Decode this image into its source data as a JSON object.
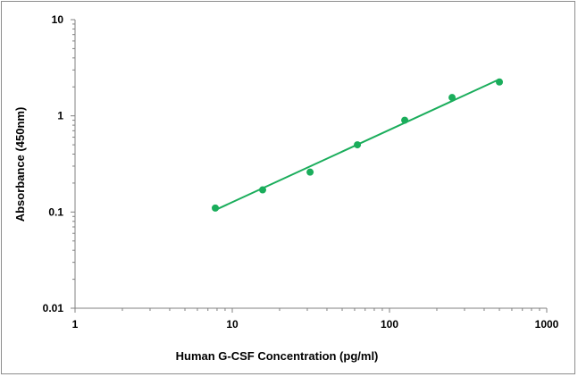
{
  "chart_data": {
    "type": "scatter",
    "title": "",
    "xlabel": "Human G-CSF Concentration (pg/ml)",
    "ylabel": "Absorbance (450nm)",
    "x_scale": "log",
    "y_scale": "log",
    "xlim": [
      1,
      1000
    ],
    "ylim": [
      0.01,
      10
    ],
    "x_ticks": [
      1,
      10,
      100,
      1000
    ],
    "x_tick_labels": [
      "1",
      "10",
      "100",
      "1000"
    ],
    "y_ticks": [
      0.01,
      0.1,
      1,
      10
    ],
    "y_tick_labels": [
      "0.01",
      "0.1",
      "1",
      "10"
    ],
    "grid": false,
    "legend": "none",
    "series": [
      {
        "x": [
          7.8,
          15.6,
          31.25,
          62.5,
          125,
          250,
          500
        ],
        "y": [
          0.11,
          0.17,
          0.26,
          0.5,
          0.9,
          1.55,
          2.25
        ],
        "color": "#1aad5b",
        "marker": "circle"
      }
    ],
    "trendline": {
      "type": "power",
      "x": [
        7.8,
        500
      ],
      "y": [
        0.105,
        2.4
      ],
      "color": "#1aad5b"
    }
  }
}
